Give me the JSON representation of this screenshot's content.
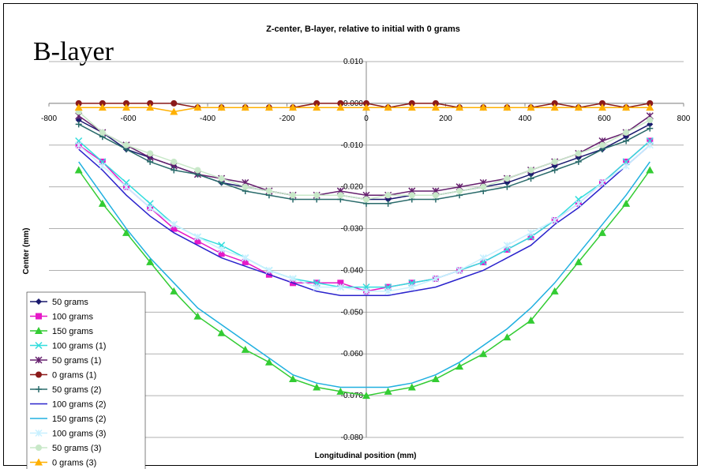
{
  "overlay_title": "B-layer",
  "chart_data": {
    "type": "line",
    "title": "Z-center, B-layer, relative to initial with 0 grams",
    "xlabel": "Longitudinal position (mm)",
    "ylabel": "Center (mm)",
    "xlim": [
      -800,
      800
    ],
    "ylim": [
      -0.08,
      0.01
    ],
    "x_ticks": [
      "-800",
      "-600",
      "-400",
      "-200",
      "0",
      "200",
      "400",
      "600",
      "800"
    ],
    "y_ticks": [
      "0.010",
      "0.000",
      "-0.010",
      "-0.020",
      "-0.030",
      "-0.040",
      "-0.050",
      "-0.060",
      "-0.070",
      "-0.080"
    ],
    "grid": "horizontal",
    "legend_position": "bottom-left",
    "x": [
      -725,
      -665,
      -605,
      -545,
      -485,
      -425,
      -365,
      -305,
      -245,
      -185,
      -125,
      -65,
      0,
      55,
      115,
      175,
      235,
      295,
      355,
      415,
      475,
      535,
      595,
      655,
      715
    ],
    "series": [
      {
        "name": "50 grams",
        "color": "#1a1a6e",
        "marker": "diamond",
        "values": [
          -0.004,
          -0.007,
          -0.011,
          -0.013,
          -0.015,
          -0.017,
          -0.019,
          -0.02,
          -0.021,
          -0.022,
          -0.022,
          -0.022,
          -0.023,
          -0.023,
          -0.022,
          -0.022,
          -0.021,
          -0.02,
          -0.019,
          -0.017,
          -0.015,
          -0.013,
          -0.011,
          -0.008,
          -0.005
        ]
      },
      {
        "name": "100 grams",
        "color": "#e619c8",
        "marker": "square",
        "values": [
          -0.01,
          -0.014,
          -0.02,
          -0.025,
          -0.03,
          -0.033,
          -0.036,
          -0.038,
          -0.041,
          -0.043,
          -0.043,
          -0.043,
          -0.045,
          -0.044,
          -0.043,
          -0.042,
          -0.04,
          -0.038,
          -0.035,
          -0.032,
          -0.028,
          -0.024,
          -0.019,
          -0.014,
          -0.009
        ]
      },
      {
        "name": "150 grams",
        "color": "#33cc33",
        "marker": "triangle",
        "values": [
          -0.016,
          -0.024,
          -0.031,
          -0.038,
          -0.045,
          -0.051,
          -0.055,
          -0.059,
          -0.062,
          -0.066,
          -0.068,
          -0.069,
          -0.07,
          -0.069,
          -0.068,
          -0.066,
          -0.063,
          -0.06,
          -0.056,
          -0.052,
          -0.045,
          -0.038,
          -0.031,
          -0.024,
          -0.016
        ]
      },
      {
        "name": "100 grams (1)",
        "color": "#33dddd",
        "marker": "x",
        "values": [
          -0.009,
          -0.014,
          -0.019,
          -0.024,
          -0.029,
          -0.032,
          -0.034,
          -0.037,
          -0.04,
          -0.042,
          -0.043,
          -0.044,
          -0.044,
          -0.044,
          -0.043,
          -0.042,
          -0.04,
          -0.038,
          -0.035,
          -0.032,
          -0.028,
          -0.023,
          -0.019,
          -0.014,
          -0.009
        ]
      },
      {
        "name": "50 grams (1)",
        "color": "#66206e",
        "marker": "star",
        "values": [
          -0.003,
          -0.007,
          -0.01,
          -0.013,
          -0.015,
          -0.017,
          -0.018,
          -0.019,
          -0.021,
          -0.022,
          -0.022,
          -0.021,
          -0.022,
          -0.022,
          -0.021,
          -0.021,
          -0.02,
          -0.019,
          -0.018,
          -0.016,
          -0.014,
          -0.012,
          -0.009,
          -0.007,
          -0.003
        ]
      },
      {
        "name": "0 grams (1)",
        "color": "#8b1a1a",
        "marker": "circle",
        "values": [
          0.0,
          0.0,
          0.0,
          0.0,
          0.0,
          -0.001,
          -0.001,
          -0.001,
          -0.001,
          -0.001,
          0.0,
          0.0,
          0.0,
          -0.001,
          0.0,
          0.0,
          -0.001,
          -0.001,
          -0.001,
          -0.001,
          0.0,
          -0.001,
          0.0,
          -0.001,
          0.0
        ]
      },
      {
        "name": "50 grams (2)",
        "color": "#2a6b6b",
        "marker": "plus",
        "values": [
          -0.005,
          -0.008,
          -0.011,
          -0.014,
          -0.016,
          -0.017,
          -0.019,
          -0.021,
          -0.022,
          -0.023,
          -0.023,
          -0.023,
          -0.024,
          -0.024,
          -0.023,
          -0.023,
          -0.022,
          -0.021,
          -0.02,
          -0.018,
          -0.016,
          -0.014,
          -0.011,
          -0.009,
          -0.006
        ]
      },
      {
        "name": "100 grams (2)",
        "color": "#2a22cc",
        "marker": "line",
        "values": [
          -0.011,
          -0.016,
          -0.022,
          -0.027,
          -0.031,
          -0.034,
          -0.037,
          -0.039,
          -0.041,
          -0.043,
          -0.045,
          -0.046,
          -0.046,
          -0.046,
          -0.045,
          -0.044,
          -0.042,
          -0.04,
          -0.037,
          -0.034,
          -0.029,
          -0.025,
          -0.02,
          -0.015,
          -0.01
        ]
      },
      {
        "name": "150 grams (2)",
        "color": "#20b0e0",
        "marker": "line",
        "values": [
          -0.014,
          -0.022,
          -0.03,
          -0.037,
          -0.043,
          -0.049,
          -0.053,
          -0.057,
          -0.061,
          -0.065,
          -0.067,
          -0.068,
          -0.068,
          -0.068,
          -0.067,
          -0.065,
          -0.062,
          -0.058,
          -0.054,
          -0.049,
          -0.043,
          -0.036,
          -0.029,
          -0.022,
          -0.014
        ]
      },
      {
        "name": "100 grams (3)",
        "color": "#c8f0ff",
        "marker": "star",
        "values": [
          -0.01,
          -0.015,
          -0.02,
          -0.025,
          -0.029,
          -0.032,
          -0.035,
          -0.037,
          -0.04,
          -0.042,
          -0.044,
          -0.044,
          -0.045,
          -0.045,
          -0.044,
          -0.042,
          -0.04,
          -0.037,
          -0.034,
          -0.031,
          -0.028,
          -0.024,
          -0.019,
          -0.015,
          -0.01
        ]
      },
      {
        "name": "50 grams (3)",
        "color": "#c8e8c8",
        "marker": "circle",
        "values": [
          -0.002,
          -0.007,
          -0.01,
          -0.012,
          -0.014,
          -0.016,
          -0.018,
          -0.02,
          -0.021,
          -0.022,
          -0.022,
          -0.022,
          -0.023,
          -0.022,
          -0.022,
          -0.022,
          -0.021,
          -0.02,
          -0.018,
          -0.016,
          -0.014,
          -0.012,
          -0.01,
          -0.007,
          -0.004
        ]
      },
      {
        "name": "0 grams (3)",
        "color": "#ffb000",
        "marker": "triangle",
        "values": [
          -0.001,
          -0.001,
          -0.001,
          -0.001,
          -0.002,
          -0.001,
          -0.001,
          -0.001,
          -0.001,
          -0.001,
          -0.001,
          -0.001,
          -0.001,
          -0.001,
          -0.001,
          -0.001,
          -0.001,
          -0.001,
          -0.001,
          -0.001,
          -0.001,
          -0.001,
          -0.001,
          -0.001,
          -0.001
        ]
      }
    ]
  }
}
